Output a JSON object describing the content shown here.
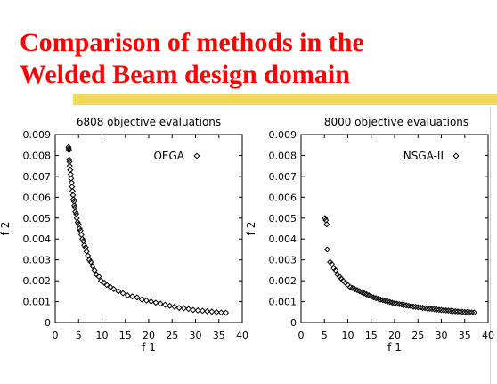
{
  "slide": {
    "title_line1": "Comparison of methods in the",
    "title_line2": "Welded Beam design domain",
    "accent_color": "#ff0000",
    "bar_color": "#f3d65a"
  },
  "chart_data": [
    {
      "type": "scatter",
      "title": "6808 objective evaluations",
      "xlabel": "f 1",
      "ylabel": "f 2",
      "xlim": [
        0,
        40
      ],
      "ylim": [
        0,
        0.009
      ],
      "xticks": [
        "0",
        "5",
        "10",
        "15",
        "20",
        "25",
        "30",
        "35",
        "40"
      ],
      "yticks": [
        "0",
        "0.001",
        "0.002",
        "0.003",
        "0.004",
        "0.005",
        "0.006",
        "0.007",
        "0.008",
        "0.009"
      ],
      "grid": false,
      "legend": "top-right",
      "marker": "diamond",
      "series": [
        {
          "name": "OEGA",
          "points": [
            [
              2.85,
              0.0084
            ],
            [
              2.9,
              0.00832
            ],
            [
              2.95,
              0.00825
            ],
            [
              3.0,
              0.0078
            ],
            [
              3.05,
              0.0077
            ],
            [
              3.1,
              0.0075
            ],
            [
              3.2,
              0.0073
            ],
            [
              3.3,
              0.0071
            ],
            [
              3.4,
              0.0069
            ],
            [
              3.5,
              0.0067
            ],
            [
              3.6,
              0.0065
            ],
            [
              3.7,
              0.0063
            ],
            [
              3.8,
              0.0061
            ],
            [
              3.9,
              0.0059
            ],
            [
              4.0,
              0.0058
            ],
            [
              4.1,
              0.0056
            ],
            [
              4.2,
              0.0055
            ],
            [
              4.3,
              0.0053
            ],
            [
              4.5,
              0.0052
            ],
            [
              4.6,
              0.005
            ],
            [
              4.8,
              0.0048
            ],
            [
              5.0,
              0.0047
            ],
            [
              5.2,
              0.0045
            ],
            [
              5.4,
              0.0044
            ],
            [
              5.6,
              0.0042
            ],
            [
              5.8,
              0.004
            ],
            [
              6.0,
              0.0039
            ],
            [
              6.2,
              0.0037
            ],
            [
              6.5,
              0.0036
            ],
            [
              6.7,
              0.0034
            ],
            [
              7.0,
              0.0032
            ],
            [
              7.3,
              0.003
            ],
            [
              7.6,
              0.0029
            ],
            [
              8.0,
              0.0027
            ],
            [
              8.4,
              0.0025
            ],
            [
              8.8,
              0.0023
            ],
            [
              9.3,
              0.0022
            ],
            [
              9.8,
              0.002
            ],
            [
              10.5,
              0.0019
            ],
            [
              11.0,
              0.0018
            ],
            [
              11.8,
              0.0017
            ],
            [
              12.5,
              0.0016
            ],
            [
              13.5,
              0.0015
            ],
            [
              14.5,
              0.0014
            ],
            [
              15.5,
              0.0013
            ],
            [
              16.5,
              0.00125
            ],
            [
              17.5,
              0.0012
            ],
            [
              18.5,
              0.0011
            ],
            [
              19.5,
              0.00105
            ],
            [
              20.5,
              0.001
            ],
            [
              21.5,
              0.00095
            ],
            [
              22.5,
              0.0009
            ],
            [
              23.5,
              0.00085
            ],
            [
              24.5,
              0.0008
            ],
            [
              25.5,
              0.00075
            ],
            [
              26.5,
              0.0007
            ],
            [
              27.5,
              0.00068
            ],
            [
              28.5,
              0.00065
            ],
            [
              29.5,
              0.0006
            ],
            [
              30.5,
              0.00058
            ],
            [
              31.5,
              0.00056
            ],
            [
              32.5,
              0.00054
            ],
            [
              33.5,
              0.00052
            ],
            [
              34.5,
              0.0005
            ],
            [
              35.5,
              0.00048
            ],
            [
              36.5,
              0.00047
            ]
          ]
        }
      ]
    },
    {
      "type": "scatter",
      "title": "8000 objective evaluations",
      "xlabel": "f 1",
      "ylabel": "f 2",
      "xlim": [
        0,
        40
      ],
      "ylim": [
        0,
        0.009
      ],
      "xticks": [
        "0",
        "5",
        "10",
        "15",
        "20",
        "25",
        "30",
        "35",
        "40"
      ],
      "yticks": [
        "0",
        "0.001",
        "0.002",
        "0.003",
        "0.004",
        "0.005",
        "0.006",
        "0.007",
        "0.008",
        "0.009"
      ],
      "grid": false,
      "legend": "top-right",
      "marker": "diamond",
      "series": [
        {
          "name": "NSGA-II",
          "points": [
            [
              5.1,
              0.005
            ],
            [
              5.3,
              0.0049
            ],
            [
              5.5,
              0.0047
            ],
            [
              5.6,
              0.0035
            ],
            [
              6.2,
              0.0029
            ],
            [
              6.6,
              0.0028
            ],
            [
              7.0,
              0.0026
            ],
            [
              7.4,
              0.0025
            ],
            [
              7.8,
              0.0023
            ],
            [
              8.2,
              0.0022
            ],
            [
              8.6,
              0.0021
            ],
            [
              9.0,
              0.002
            ],
            [
              9.5,
              0.0019
            ],
            [
              10.0,
              0.0018
            ],
            [
              10.5,
              0.0017
            ],
            [
              11.0,
              0.00165
            ],
            [
              11.5,
              0.0016
            ],
            [
              12.0,
              0.00155
            ],
            [
              12.5,
              0.0015
            ],
            [
              13.0,
              0.00145
            ],
            [
              13.5,
              0.0014
            ],
            [
              14.0,
              0.00135
            ],
            [
              14.5,
              0.0013
            ],
            [
              15.0,
              0.00125
            ],
            [
              15.5,
              0.0012
            ],
            [
              16.0,
              0.00117
            ],
            [
              16.5,
              0.00114
            ],
            [
              17.0,
              0.0011
            ],
            [
              17.5,
              0.00107
            ],
            [
              18.0,
              0.00104
            ],
            [
              18.5,
              0.00101
            ],
            [
              19.0,
              0.00098
            ],
            [
              19.5,
              0.00095
            ],
            [
              20.0,
              0.00092
            ],
            [
              20.5,
              0.0009
            ],
            [
              21.0,
              0.00088
            ],
            [
              21.5,
              0.00086
            ],
            [
              22.0,
              0.00084
            ],
            [
              22.5,
              0.00082
            ],
            [
              23.0,
              0.0008
            ],
            [
              23.5,
              0.00078
            ],
            [
              24.0,
              0.00076
            ],
            [
              24.5,
              0.00075
            ],
            [
              25.0,
              0.00073
            ],
            [
              25.5,
              0.00072
            ],
            [
              26.0,
              0.0007
            ],
            [
              26.5,
              0.00069
            ],
            [
              27.0,
              0.00067
            ],
            [
              27.5,
              0.00066
            ],
            [
              28.0,
              0.00065
            ],
            [
              28.5,
              0.00064
            ],
            [
              29.0,
              0.00062
            ],
            [
              29.5,
              0.00061
            ],
            [
              30.0,
              0.0006
            ],
            [
              30.5,
              0.00059
            ],
            [
              31.0,
              0.00058
            ],
            [
              31.5,
              0.00057
            ],
            [
              32.0,
              0.00056
            ],
            [
              32.5,
              0.00055
            ],
            [
              33.0,
              0.00054
            ],
            [
              33.5,
              0.00053
            ],
            [
              34.0,
              0.00052
            ],
            [
              34.5,
              0.00051
            ],
            [
              35.0,
              0.0005
            ],
            [
              35.5,
              0.0005
            ],
            [
              36.0,
              0.00049
            ],
            [
              36.5,
              0.00048
            ],
            [
              37.0,
              0.00048
            ]
          ]
        }
      ]
    }
  ]
}
